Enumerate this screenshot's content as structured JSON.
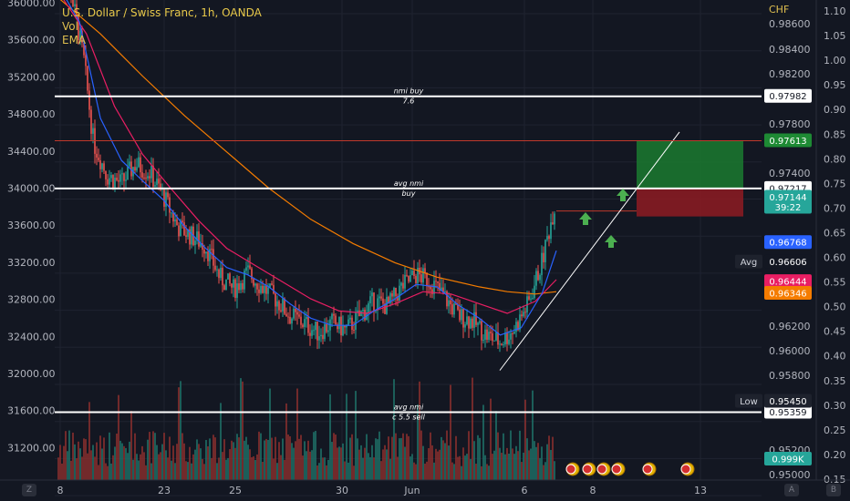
{
  "header": {
    "title": "U.S. Dollar / Swiss Franc, 1h, OANDA",
    "indicator_1": "Vol",
    "indicator_2": "EMA",
    "currency": "CHF"
  },
  "corner_buttons": {
    "left": "Z",
    "auto": "A",
    "log": "B"
  },
  "colors": {
    "background": "#131722",
    "up": "#26a69a",
    "down": "#ef5350",
    "ema_fast": "#2962ff",
    "ema_mid": "#e91e63",
    "ema_slow": "#f57c00",
    "target_zone": "#1b7a2f",
    "stop_zone": "#8e1b22",
    "arrow": "#4caf50"
  },
  "chart_data": {
    "type": "candlestick",
    "price_axis_right": {
      "min": 0.95,
      "max": 0.986,
      "ticks": [
        "0.98600",
        "0.98400",
        "0.98200",
        "0.97800",
        "0.97400",
        "0.96200",
        "0.96000",
        "0.95800",
        "0.95600",
        "0.95200",
        "0.95000"
      ]
    },
    "left_axis": {
      "min": 31000,
      "max": 36000,
      "ticks": [
        "36000.00",
        "35600.00",
        "35200.00",
        "34800.00",
        "34400.00",
        "34000.00",
        "33600.00",
        "33200.00",
        "32800.00",
        "32400.00",
        "32000.00",
        "31600.00",
        "31200.00"
      ]
    },
    "far_right_axis": {
      "min": 0.15,
      "max": 1.1,
      "ticks": [
        "1.10",
        "1.05",
        "1.00",
        "0.95",
        "0.90",
        "0.85",
        "0.80",
        "0.75",
        "0.70",
        "0.65",
        "0.60",
        "0.55",
        "0.50",
        "0.45",
        "0.40",
        "0.35",
        "0.30",
        "0.25",
        "0.20",
        "0.15"
      ]
    },
    "time_axis": [
      "8",
      "23",
      "25",
      "30",
      "Jun",
      "6",
      "8",
      "13"
    ],
    "close_path": [
      [
        0,
        0.9902
      ],
      [
        8,
        0.989
      ],
      [
        18,
        0.983
      ],
      [
        25,
        0.976
      ],
      [
        35,
        0.9732
      ],
      [
        45,
        0.9726
      ],
      [
        55,
        0.9742
      ],
      [
        65,
        0.9735
      ],
      [
        75,
        0.9715
      ],
      [
        85,
        0.969
      ],
      [
        95,
        0.9682
      ],
      [
        105,
        0.9674
      ],
      [
        115,
        0.9648
      ],
      [
        125,
        0.9638
      ],
      [
        135,
        0.9652
      ],
      [
        145,
        0.964
      ],
      [
        155,
        0.963
      ],
      [
        165,
        0.9616
      ],
      [
        175,
        0.961
      ],
      [
        185,
        0.9602
      ],
      [
        195,
        0.961
      ],
      [
        205,
        0.9604
      ],
      [
        215,
        0.9616
      ],
      [
        225,
        0.9628
      ],
      [
        235,
        0.9624
      ],
      [
        245,
        0.964
      ],
      [
        255,
        0.965
      ],
      [
        265,
        0.9645
      ],
      [
        275,
        0.9632
      ],
      [
        285,
        0.9616
      ],
      [
        295,
        0.9612
      ],
      [
        305,
        0.96
      ],
      [
        315,
        0.9594
      ],
      [
        325,
        0.9605
      ],
      [
        335,
        0.9626
      ],
      [
        345,
        0.9662
      ],
      [
        355,
        0.9714
      ]
    ],
    "ema_fast": [
      [
        0,
        0.989
      ],
      [
        15,
        0.986
      ],
      [
        30,
        0.978
      ],
      [
        45,
        0.9745
      ],
      [
        60,
        0.9728
      ],
      [
        75,
        0.9712
      ],
      [
        90,
        0.969
      ],
      [
        105,
        0.9672
      ],
      [
        120,
        0.9656
      ],
      [
        135,
        0.965
      ],
      [
        150,
        0.964
      ],
      [
        165,
        0.9626
      ],
      [
        180,
        0.9614
      ],
      [
        195,
        0.9608
      ],
      [
        210,
        0.9608
      ],
      [
        225,
        0.962
      ],
      [
        240,
        0.963
      ],
      [
        255,
        0.9642
      ],
      [
        270,
        0.964
      ],
      [
        285,
        0.9625
      ],
      [
        300,
        0.9614
      ],
      [
        315,
        0.96
      ],
      [
        330,
        0.9606
      ],
      [
        345,
        0.9635
      ],
      [
        355,
        0.967
      ]
    ],
    "ema_mid": [
      [
        0,
        0.9885
      ],
      [
        20,
        0.985
      ],
      [
        40,
        0.979
      ],
      [
        60,
        0.975
      ],
      [
        80,
        0.9722
      ],
      [
        100,
        0.9695
      ],
      [
        120,
        0.9672
      ],
      [
        140,
        0.9658
      ],
      [
        160,
        0.9644
      ],
      [
        180,
        0.963
      ],
      [
        200,
        0.962
      ],
      [
        220,
        0.9618
      ],
      [
        240,
        0.9626
      ],
      [
        260,
        0.9636
      ],
      [
        280,
        0.9634
      ],
      [
        300,
        0.9626
      ],
      [
        320,
        0.9618
      ],
      [
        340,
        0.9628
      ],
      [
        355,
        0.9646
      ]
    ],
    "ema_slow": [
      [
        0,
        0.988
      ],
      [
        30,
        0.985
      ],
      [
        60,
        0.9815
      ],
      [
        90,
        0.9782
      ],
      [
        120,
        0.9752
      ],
      [
        150,
        0.9722
      ],
      [
        180,
        0.9696
      ],
      [
        210,
        0.9676
      ],
      [
        240,
        0.966
      ],
      [
        270,
        0.9648
      ],
      [
        300,
        0.964
      ],
      [
        320,
        0.9636
      ],
      [
        340,
        0.9634
      ],
      [
        355,
        0.9636
      ]
    ],
    "trendline": {
      "from": [
        0.956,
        0.9557
      ],
      "to": [
        0.979,
        0.9761
      ]
    },
    "levels": [
      {
        "name": "nmi-buy",
        "label": "nmi buy",
        "sublabel": "7.6",
        "price": 0.97982,
        "tag": "0.97982",
        "color": "#ffffff",
        "tag_bg": "#ffffff",
        "tag_fg": "#131722"
      },
      {
        "name": "target",
        "label": "",
        "sublabel": "",
        "price": 0.97613,
        "tag": "0.97613",
        "color": "#c0392b",
        "tag_bg": "#1e8a34",
        "tag_fg": "#ffffff"
      },
      {
        "name": "avg-nmi-buy",
        "label": "avg nmi",
        "sublabel": "buy",
        "price": 0.97217,
        "tag": "0.97217",
        "color": "#ffffff",
        "tag_bg": "#ffffff",
        "tag_fg": "#131722"
      },
      {
        "name": "avg-nmi-sell",
        "label": "avg nmi",
        "sublabel": "c 5.5 sell",
        "price": 0.95359,
        "tag": "0.95359",
        "color": "#ffffff",
        "tag_bg": "#ffffff",
        "tag_fg": "#131722"
      }
    ],
    "price_tags": [
      {
        "name": "current",
        "text": "0.97144",
        "sub": "39:22",
        "price": 0.97144,
        "bg": "#26a69a",
        "fg": "#ffffff"
      },
      {
        "name": "ema-fast-tag",
        "text": "0.96768",
        "sub": "",
        "price": 0.96768,
        "bg": "#2962ff",
        "fg": "#ffffff"
      },
      {
        "name": "avg",
        "text": "0.96606",
        "sub": "",
        "price": 0.96606,
        "bg": "#131722",
        "fg": "#ffffff",
        "prefix": "Avg"
      },
      {
        "name": "ema-mid-tag",
        "text": "0.96444",
        "sub": "",
        "price": 0.96444,
        "bg": "#e91e63",
        "fg": "#ffffff"
      },
      {
        "name": "ema-slow-tag",
        "text": "0.96346",
        "sub": "",
        "price": 0.96346,
        "bg": "#f57c00",
        "fg": "#ffffff"
      },
      {
        "name": "low",
        "text": "0.95450",
        "sub": "",
        "price": 0.9545,
        "bg": "#1e222d",
        "fg": "#ffffff",
        "prefix": "Low"
      },
      {
        "name": "volume",
        "text": "0.999K",
        "sub": "",
        "price": 0.9497,
        "bg": "#26a69a",
        "fg": "#ffffff"
      }
    ],
    "position": {
      "entry": 0.97217,
      "target": 0.97613,
      "stop": 0.9706
    }
  }
}
